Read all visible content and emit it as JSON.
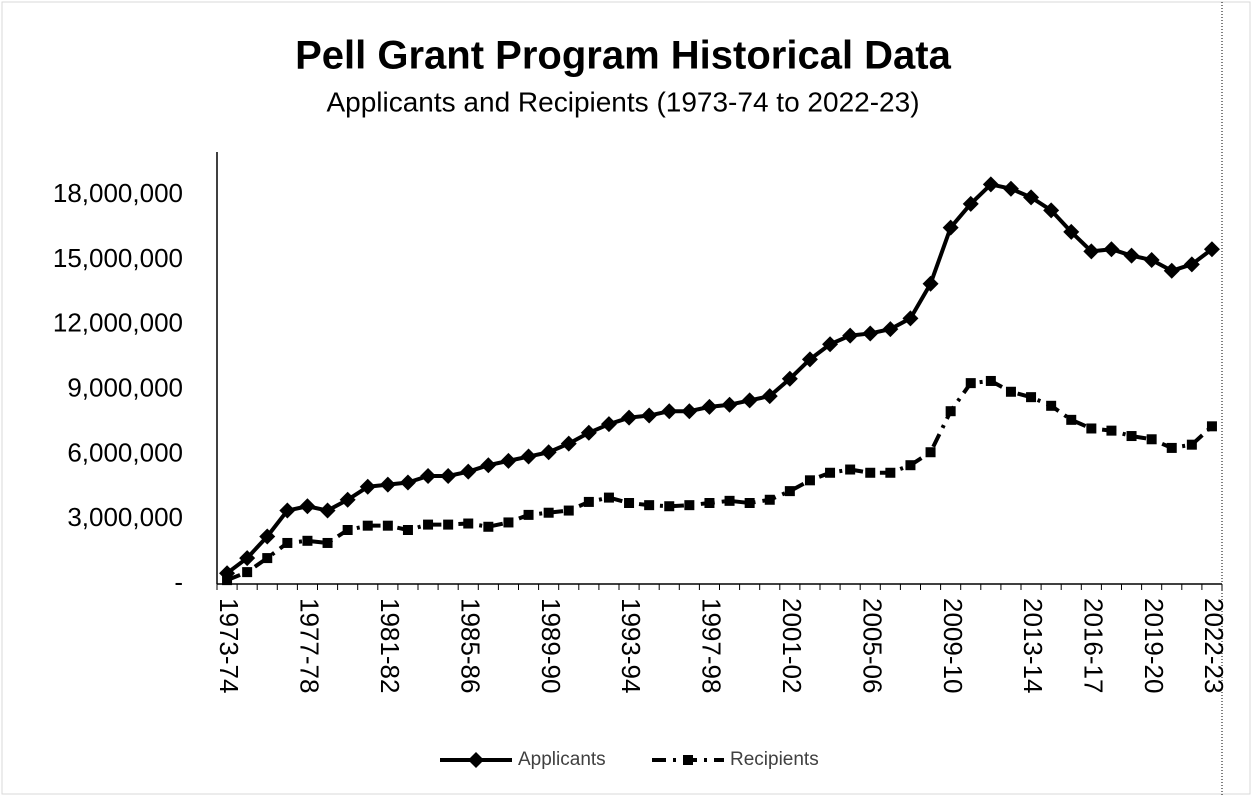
{
  "chart_data": {
    "type": "line",
    "title": "Pell Grant Program Historical Data",
    "subtitle": "Applicants and Recipients (1973-74 to 2022-23)",
    "categories": [
      "1973-74",
      null,
      null,
      null,
      "1977-78",
      null,
      null,
      null,
      "1981-82",
      null,
      null,
      null,
      "1985-86",
      null,
      null,
      null,
      "1989-90",
      null,
      null,
      null,
      "1993-94",
      null,
      null,
      null,
      "1997-98",
      null,
      null,
      null,
      "2001-02",
      null,
      null,
      null,
      "2005-06",
      null,
      null,
      null,
      "2009-10",
      null,
      null,
      null,
      "2013-14",
      null,
      null,
      "2016-17",
      null,
      null,
      "2019-20",
      null,
      null,
      "2022-23"
    ],
    "series": [
      {
        "name": "Applicants",
        "color": "#000000",
        "dash": "solid",
        "marker": "diamond",
        "values": [
          500000,
          1200000,
          2200000,
          3400000,
          3600000,
          3400000,
          3900000,
          4500000,
          4600000,
          4700000,
          5000000,
          5000000,
          5200000,
          5500000,
          5700000,
          5900000,
          6100000,
          6500000,
          7000000,
          7400000,
          7700000,
          7800000,
          8000000,
          8000000,
          8200000,
          8300000,
          8500000,
          8700000,
          9500000,
          10400000,
          11100000,
          11500000,
          11600000,
          11800000,
          12300000,
          13900000,
          16500000,
          17600000,
          18500000,
          18300000,
          17900000,
          17300000,
          16300000,
          15400000,
          15500000,
          15200000,
          15000000,
          14500000,
          14800000,
          15500000
        ]
      },
      {
        "name": "Recipients",
        "color": "#000000",
        "dash": "dashdot",
        "marker": "square",
        "values": [
          180000,
          550000,
          1200000,
          1900000,
          2000000,
          1900000,
          2500000,
          2700000,
          2700000,
          2500000,
          2750000,
          2750000,
          2800000,
          2650000,
          2850000,
          3200000,
          3300000,
          3400000,
          3800000,
          4000000,
          3750000,
          3650000,
          3600000,
          3650000,
          3750000,
          3850000,
          3750000,
          3900000,
          4300000,
          4800000,
          5150000,
          5300000,
          5150000,
          5150000,
          5500000,
          6100000,
          8000000,
          9300000,
          9400000,
          8900000,
          8650000,
          8250000,
          7600000,
          7200000,
          7100000,
          6850000,
          6700000,
          6300000,
          6450000,
          7300000
        ]
      }
    ],
    "ylim": [
      0,
      20000000
    ],
    "yticks": [
      {
        "value": 0,
        "label": "-"
      },
      {
        "value": 3000000,
        "label": "3,000,000"
      },
      {
        "value": 6000000,
        "label": "6,000,000"
      },
      {
        "value": 9000000,
        "label": "9,000,000"
      },
      {
        "value": 12000000,
        "label": "12,000,000"
      },
      {
        "value": 15000000,
        "label": "15,000,000"
      },
      {
        "value": 18000000,
        "label": "18,000,000"
      }
    ],
    "grid": false,
    "legend": "bottom"
  }
}
